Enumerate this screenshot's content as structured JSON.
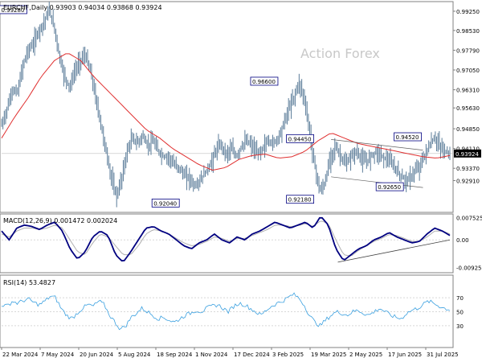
{
  "header": {
    "symbol_line": "EURCHF,Daily  0.93903 0.94034 0.93868 0.93924",
    "watermark": "Action Forex"
  },
  "colors": {
    "price_bars": "#5b7c99",
    "moving_average": "#e03030",
    "macd": "#000080",
    "signal": "#b0b0b0",
    "rsi": "#3aa0e0",
    "grid": "#d8d8d8",
    "label_box": "#000080"
  },
  "chart_data": [
    {
      "type": "ohlc",
      "name": "price_panel",
      "symbol": "EURCHF",
      "timeframe": "Daily",
      "last": {
        "open": 0.93903,
        "high": 0.94034,
        "low": 0.93868,
        "close": 0.93924
      },
      "current_price_label": "0.93924",
      "ylim": [
        0.9175,
        0.9955
      ],
      "y_ticks": [
        0.9291,
        0.9337,
        0.9411,
        0.9485,
        0.9563,
        0.9631,
        0.9705,
        0.9779,
        0.9853,
        0.9925
      ],
      "y_tick_labels": [
        "0.92910",
        "0.93370",
        "0.94110",
        "0.94850",
        "0.95630",
        "0.96310",
        "0.97050",
        "0.97790",
        "0.98530",
        "0.99250"
      ],
      "x_labels": [
        "22 Mar 2024",
        "7 May 2024",
        "20 Jun 2024",
        "5 Aug 2024",
        "18 Sep 2024",
        "1 Nov 2024",
        "17 Dec 2024",
        "3 Feb 2025",
        "19 Mar 2025",
        "2 May 2025",
        "17 Jun 2025",
        "31 Jul 2025"
      ],
      "close_path": [
        0.95,
        0.956,
        0.963,
        0.962,
        0.972,
        0.978,
        0.98,
        0.985,
        0.988,
        0.9928,
        0.987,
        0.976,
        0.968,
        0.964,
        0.97,
        0.974,
        0.976,
        0.97,
        0.96,
        0.95,
        0.94,
        0.93,
        0.923,
        0.93,
        0.94,
        0.945,
        0.943,
        0.946,
        0.942,
        0.944,
        0.94,
        0.938,
        0.938,
        0.935,
        0.934,
        0.931,
        0.93,
        0.927,
        0.929,
        0.932,
        0.935,
        0.94,
        0.943,
        0.939,
        0.941,
        0.938,
        0.942,
        0.944,
        0.942,
        0.939,
        0.941,
        0.944,
        0.943,
        0.945,
        0.95,
        0.956,
        0.96,
        0.966,
        0.96,
        0.948,
        0.935,
        0.925,
        0.928,
        0.938,
        0.942,
        0.938,
        0.935,
        0.938,
        0.94,
        0.937,
        0.936,
        0.939,
        0.94,
        0.938,
        0.937,
        0.935,
        0.932,
        0.93,
        0.929,
        0.932,
        0.934,
        0.938,
        0.942,
        0.9452,
        0.942,
        0.94,
        0.9392
      ],
      "ma_path": [
        0.945,
        0.953,
        0.96,
        0.968,
        0.974,
        0.977,
        0.974,
        0.968,
        0.963,
        0.958,
        0.953,
        0.948,
        0.945,
        0.941,
        0.938,
        0.935,
        0.933,
        0.934,
        0.937,
        0.9385,
        0.939,
        0.9375,
        0.938,
        0.94,
        0.944,
        0.947,
        0.945,
        0.943,
        0.942,
        0.941,
        0.94,
        0.939,
        0.938,
        0.9375,
        0.9385
      ],
      "labels": [
        {
          "text": "0.99280",
          "value": 0.9928,
          "at": 0.06
        },
        {
          "text": "0.92040",
          "value": 0.9204,
          "at": 0.4
        },
        {
          "text": "0.96600",
          "value": 0.966,
          "at": 0.62
        },
        {
          "text": "0.94450",
          "value": 0.9445,
          "at": 0.7
        },
        {
          "text": "0.92180",
          "value": 0.9218,
          "at": 0.7
        },
        {
          "text": "0.92650",
          "value": 0.9265,
          "at": 0.9
        },
        {
          "text": "0.94520",
          "value": 0.9452,
          "at": 0.94
        }
      ]
    },
    {
      "type": "line",
      "name": "macd_panel",
      "title": "MACD(12,26,9) 0.001472 0.002024",
      "ylim": [
        -0.0108,
        0.0082
      ],
      "y_ticks": [
        0.007525,
        0.0,
        -0.009252
      ],
      "y_tick_labels": [
        "0.007525",
        "0.00",
        "-0.009252"
      ],
      "macd_path": [
        0.003,
        0.0,
        0.004,
        0.005,
        0.0045,
        0.0035,
        0.005,
        0.006,
        0.003,
        -0.003,
        -0.0065,
        -0.004,
        0.001,
        0.003,
        0.0015,
        -0.005,
        -0.0075,
        -0.004,
        0.0,
        0.004,
        0.0045,
        0.003,
        0.002,
        0.0,
        -0.002,
        -0.003,
        -0.001,
        0.0,
        0.002,
        0.0,
        -0.001,
        0.001,
        0.0,
        0.002,
        0.003,
        0.0045,
        0.006,
        0.005,
        0.004,
        0.005,
        0.006,
        0.004,
        0.008,
        0.005,
        -0.003,
        -0.007,
        -0.005,
        -0.003,
        -0.002,
        0.0,
        0.001,
        0.0025,
        0.001,
        0.0,
        -0.001,
        -0.0005,
        0.002,
        0.004,
        0.003,
        0.0015
      ],
      "signal_path": [
        0.002,
        0.001,
        0.003,
        0.004,
        0.004,
        0.0035,
        0.004,
        0.005,
        0.004,
        0.0,
        -0.004,
        -0.005,
        -0.001,
        0.002,
        0.001,
        -0.002,
        -0.005,
        -0.005,
        -0.002,
        0.002,
        0.0035,
        0.003,
        0.002,
        0.0005,
        -0.001,
        -0.002,
        -0.0015,
        -0.0005,
        0.001,
        0.0005,
        -0.0005,
        0.0005,
        0.0005,
        0.0015,
        0.0025,
        0.0035,
        0.005,
        0.005,
        0.0045,
        0.0048,
        0.0055,
        0.0045,
        0.0065,
        0.0055,
        0.0,
        -0.005,
        -0.0055,
        -0.0035,
        -0.002,
        -0.0005,
        0.0005,
        0.0018,
        0.0015,
        0.0005,
        -0.0005,
        -0.0005,
        0.001,
        0.003,
        0.003,
        0.002
      ]
    },
    {
      "type": "line",
      "name": "rsi_panel",
      "title": "RSI(14) 53.4827",
      "ylim": [
        0,
        100
      ],
      "y_ticks": [
        70,
        50,
        30
      ],
      "y_tick_labels": [
        "70",
        "50",
        "30"
      ],
      "rsi_path": [
        60,
        58,
        65,
        62,
        66,
        68,
        63,
        60,
        65,
        72,
        70,
        55,
        45,
        40,
        48,
        55,
        60,
        58,
        65,
        60,
        45,
        35,
        25,
        30,
        42,
        48,
        55,
        50,
        45,
        40,
        42,
        38,
        35,
        40,
        45,
        48,
        52,
        50,
        55,
        58,
        60,
        55,
        50,
        58,
        62,
        60,
        55,
        50,
        45,
        52,
        58,
        62,
        65,
        70,
        75,
        70,
        60,
        45,
        35,
        30,
        38,
        45,
        50,
        48,
        45,
        50,
        52,
        48,
        45,
        50,
        55,
        50,
        45,
        42,
        40,
        48,
        52,
        55,
        60,
        65,
        62,
        58,
        55,
        53
      ]
    }
  ]
}
